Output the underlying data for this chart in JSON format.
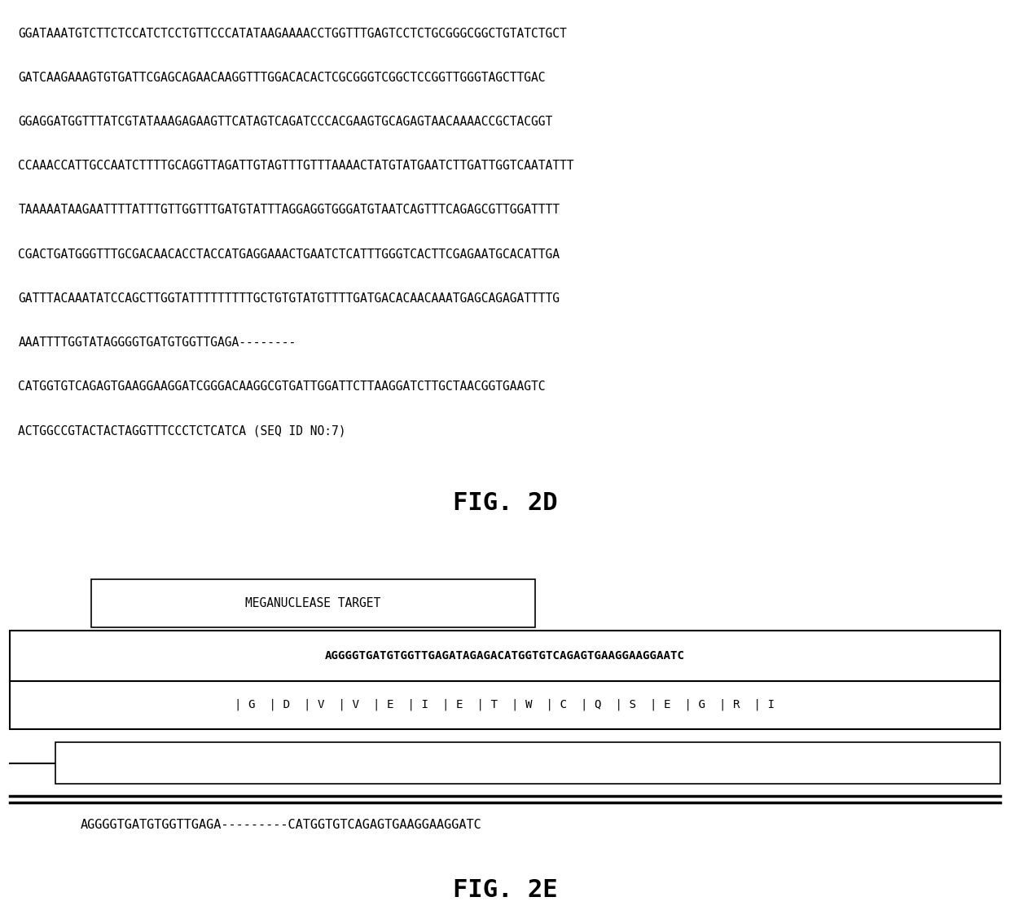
{
  "fig2d_lines": [
    "GGATAAATGTCTTCTCCATCTCCTGTTCCCATATAAGAAAACCTGGTTTGAGTCCTCTGCGGGCGGCTGTATCTGCT",
    "GATCAAGAAAGTGTGATTCGAGCAGAACAAGGTTTGGACACACTCGCGGGTCGGCTCCGGTTGGGTAGCTTGAC",
    "GGAGGATGGTTTATCGTATAAAGAGAAGTTCATAGTCAGATCCCACGAAGTGCAGAGTAACAAAACCGCTACGGT",
    "CCAAACCATTGCCAATCTTTTGCAGGTTAGATTGTAGTTTGTTTAAAACTATGTATGAATCTTGATTGGTCAATATTT",
    "TAAAAATAAGAATTTTATTTGTTGGTTTGATGTATTTAGGAGGTGGGATGTAATCAGTTTCAGAGCGTTGGATTTT",
    "CGACTGATGGGTTTGCGACAACACCTACCATGAGGAAACTGAATCTCATTTGGGTCACTTCGAGAATGCACATTGA",
    "GATTTACAAATATCCAGCTTGGTATTTTTTTTTGCTGTGTATGTTTTGATGACACAACAAATGAGCAGAGATTTTG",
    "AAATTTTGGTATAGGGGTGATGTGGTTGAGA--------",
    "CATGGTGTCAGAGTGAAGGAAGGATCGGGACAAGGCGTGATTGGATTCTTAAGGATCTTGCTAACGGTGAAGTC",
    "ACTGGCCGTACTACTAGGTTTCCCTCTCATCA (SEQ ID NO:7)"
  ],
  "fig2d_label": "FIG. 2D",
  "meganuclease_label": "MEGANUCLEASE TARGET",
  "dna_sequence_top": "AGGGGTGATGTGGTTGAGATAGAGACATGGTGTCAGAGTGAAGGAAGGAATC",
  "amino_acids": "| G  | D  | V  | V  | E  | I  | E  | T  | W  | C  | Q  | S  | E  | G  | R  | I",
  "deletion_seq": "AGGGGTGATGTGGTTGAGA---------CATGGTGTCAGAGTGAAGGAAGGATC",
  "fig2e_label": "FIG. 2E",
  "bg_color": "#ffffff",
  "text_color": "#000000",
  "font_size_body": 10.5,
  "font_size_fig": 22,
  "font_family": "monospace"
}
